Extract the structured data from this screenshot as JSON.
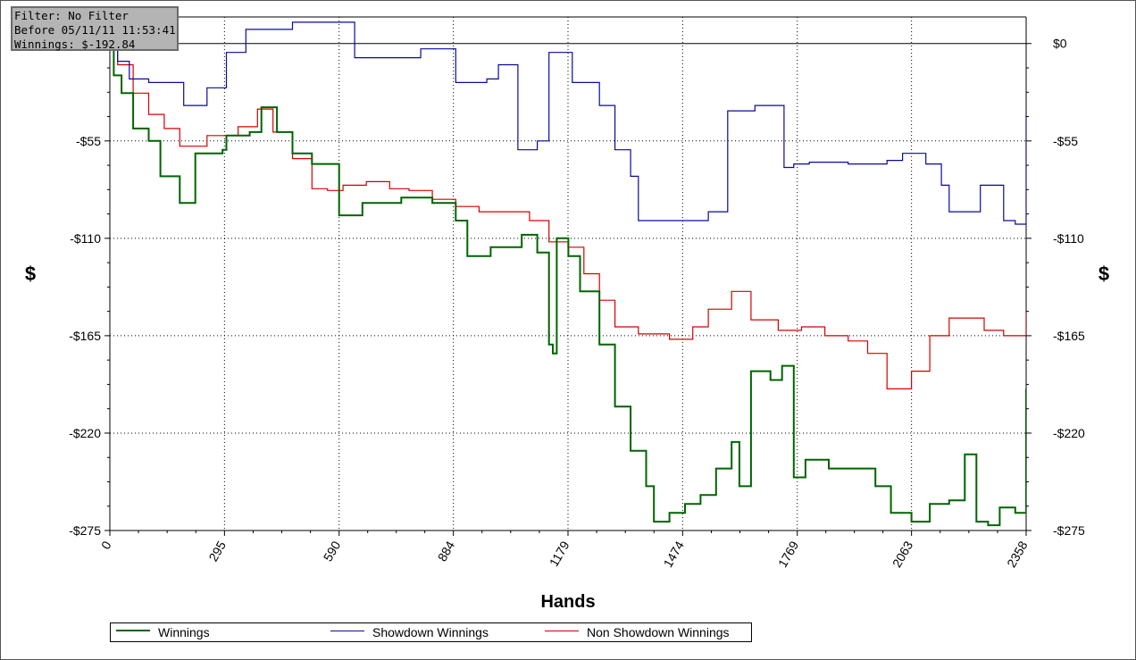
{
  "info": {
    "filter": "Filter: No Filter",
    "before": "Before 05/11/11 11:53:41",
    "winnings": "Winnings: $-192.84"
  },
  "colors": {
    "winnings": "#006400",
    "showdown": "#0a0a9a",
    "nonshowdown": "#d40000",
    "grid": "#000000"
  },
  "chart_data": {
    "type": "line",
    "xlabel": "Hands",
    "ylabel": "$",
    "xlim": [
      0,
      2358
    ],
    "ylim": [
      -275,
      15
    ],
    "x_ticks": [
      0,
      295,
      590,
      884,
      1179,
      1474,
      1769,
      2063,
      2358
    ],
    "x_tick_labels": [
      "0",
      "295",
      "590",
      "884",
      "1179",
      "1474",
      "1769",
      "2063",
      "2358"
    ],
    "y_ticks": [
      0,
      -55,
      -110,
      -165,
      -220,
      -275
    ],
    "y_tick_labels": [
      "$0",
      "-$55",
      "-$110",
      "-$165",
      "-$220",
      "-$275"
    ],
    "grid": true,
    "legend_position": "bottom",
    "series": [
      {
        "name": "Winnings",
        "color": "#006400",
        "points": [
          [
            0,
            0
          ],
          [
            10,
            -18
          ],
          [
            30,
            -28
          ],
          [
            60,
            -48
          ],
          [
            100,
            -55
          ],
          [
            130,
            -75
          ],
          [
            180,
            -90
          ],
          [
            220,
            -62
          ],
          [
            290,
            -60
          ],
          [
            300,
            -52
          ],
          [
            360,
            -50
          ],
          [
            390,
            -36
          ],
          [
            430,
            -50
          ],
          [
            470,
            -62
          ],
          [
            520,
            -68
          ],
          [
            590,
            -97
          ],
          [
            650,
            -90
          ],
          [
            700,
            -90
          ],
          [
            750,
            -87
          ],
          [
            830,
            -90
          ],
          [
            890,
            -100
          ],
          [
            920,
            -120
          ],
          [
            980,
            -115
          ],
          [
            1010,
            -115
          ],
          [
            1060,
            -108
          ],
          [
            1100,
            -118
          ],
          [
            1120,
            -118
          ],
          [
            1130,
            -170
          ],
          [
            1140,
            -175
          ],
          [
            1150,
            -110
          ],
          [
            1180,
            -120
          ],
          [
            1210,
            -140
          ],
          [
            1260,
            -170
          ],
          [
            1300,
            -205
          ],
          [
            1340,
            -230
          ],
          [
            1380,
            -250
          ],
          [
            1400,
            -270
          ],
          [
            1440,
            -265
          ],
          [
            1480,
            -260
          ],
          [
            1520,
            -255
          ],
          [
            1560,
            -240
          ],
          [
            1600,
            -225
          ],
          [
            1620,
            -250
          ],
          [
            1650,
            -185
          ],
          [
            1700,
            -190
          ],
          [
            1730,
            -182
          ],
          [
            1760,
            -245
          ],
          [
            1790,
            -235
          ],
          [
            1850,
            -240
          ],
          [
            1900,
            -240
          ],
          [
            1970,
            -250
          ],
          [
            2010,
            -265
          ],
          [
            2063,
            -270
          ],
          [
            2110,
            -260
          ],
          [
            2160,
            -258
          ],
          [
            2200,
            -232
          ],
          [
            2230,
            -270
          ],
          [
            2260,
            -272
          ],
          [
            2290,
            -262
          ],
          [
            2330,
            -265
          ],
          [
            2358,
            -195
          ]
        ]
      },
      {
        "name": "Showdown Winnings",
        "color": "#0a0a9a",
        "points": [
          [
            0,
            0
          ],
          [
            20,
            -10
          ],
          [
            50,
            -20
          ],
          [
            100,
            -22
          ],
          [
            190,
            -35
          ],
          [
            250,
            -25
          ],
          [
            300,
            -5
          ],
          [
            350,
            8
          ],
          [
            470,
            12
          ],
          [
            590,
            12
          ],
          [
            630,
            -8
          ],
          [
            800,
            -3
          ],
          [
            890,
            -22
          ],
          [
            970,
            -20
          ],
          [
            1000,
            -12
          ],
          [
            1050,
            -60
          ],
          [
            1100,
            -55
          ],
          [
            1130,
            -5
          ],
          [
            1190,
            -22
          ],
          [
            1260,
            -35
          ],
          [
            1300,
            -60
          ],
          [
            1340,
            -75
          ],
          [
            1360,
            -100
          ],
          [
            1400,
            -100
          ],
          [
            1460,
            -100
          ],
          [
            1540,
            -95
          ],
          [
            1590,
            -38
          ],
          [
            1660,
            -35
          ],
          [
            1720,
            -35
          ],
          [
            1735,
            -70
          ],
          [
            1760,
            -68
          ],
          [
            1780,
            -68
          ],
          [
            1800,
            -67
          ],
          [
            1900,
            -68
          ],
          [
            2000,
            -66
          ],
          [
            2040,
            -62
          ],
          [
            2100,
            -68
          ],
          [
            2140,
            -80
          ],
          [
            2160,
            -95
          ],
          [
            2200,
            -95
          ],
          [
            2240,
            -80
          ],
          [
            2300,
            -100
          ],
          [
            2330,
            -102
          ],
          [
            2358,
            -40
          ]
        ]
      },
      {
        "name": "Non Showdown Winnings",
        "color": "#d40000",
        "points": [
          [
            0,
            0
          ],
          [
            20,
            -12
          ],
          [
            60,
            -28
          ],
          [
            100,
            -40
          ],
          [
            140,
            -48
          ],
          [
            180,
            -58
          ],
          [
            250,
            -52
          ],
          [
            300,
            -52
          ],
          [
            330,
            -47
          ],
          [
            380,
            -37
          ],
          [
            420,
            -50
          ],
          [
            470,
            -65
          ],
          [
            520,
            -82
          ],
          [
            560,
            -83
          ],
          [
            600,
            -80
          ],
          [
            660,
            -78
          ],
          [
            720,
            -82
          ],
          [
            770,
            -83
          ],
          [
            830,
            -88
          ],
          [
            890,
            -92
          ],
          [
            950,
            -95
          ],
          [
            1010,
            -95
          ],
          [
            1080,
            -100
          ],
          [
            1130,
            -112
          ],
          [
            1179,
            -115
          ],
          [
            1220,
            -130
          ],
          [
            1260,
            -145
          ],
          [
            1300,
            -160
          ],
          [
            1360,
            -164
          ],
          [
            1440,
            -167
          ],
          [
            1500,
            -160
          ],
          [
            1540,
            -150
          ],
          [
            1600,
            -140
          ],
          [
            1650,
            -156
          ],
          [
            1720,
            -162
          ],
          [
            1780,
            -160
          ],
          [
            1840,
            -165
          ],
          [
            1900,
            -168
          ],
          [
            1950,
            -175
          ],
          [
            2000,
            -195
          ],
          [
            2063,
            -185
          ],
          [
            2110,
            -165
          ],
          [
            2160,
            -155
          ],
          [
            2200,
            -155
          ],
          [
            2250,
            -162
          ],
          [
            2300,
            -165
          ],
          [
            2358,
            -152
          ]
        ]
      }
    ]
  }
}
